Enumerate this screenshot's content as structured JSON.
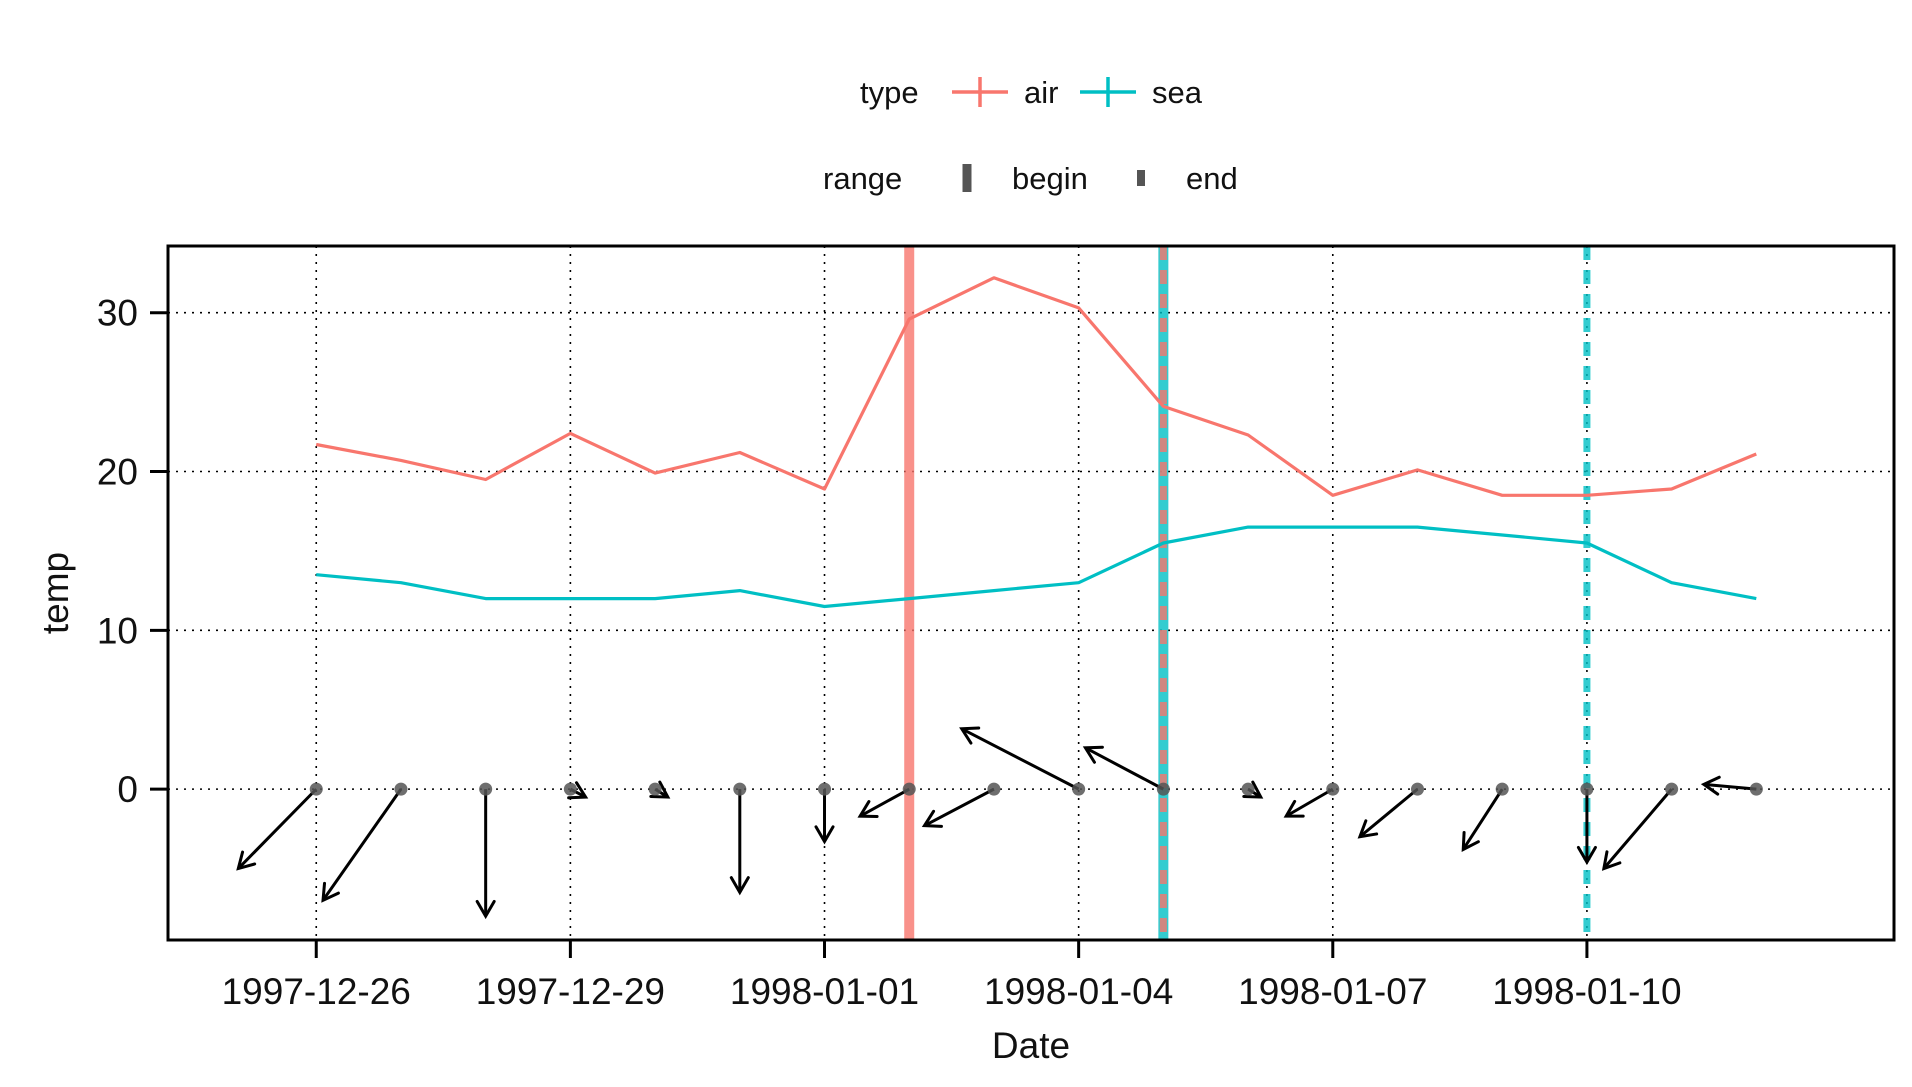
{
  "chart_data": {
    "type": "line",
    "xlabel": "Date",
    "ylabel": "temp",
    "x": [
      "1997-12-26",
      "1997-12-27",
      "1997-12-28",
      "1997-12-29",
      "1997-12-30",
      "1997-12-31",
      "1998-01-01",
      "1998-01-02",
      "1998-01-03",
      "1998-01-04",
      "1998-01-05",
      "1998-01-06",
      "1998-01-07",
      "1998-01-08",
      "1998-01-09",
      "1998-01-10",
      "1998-01-11",
      "1998-01-12"
    ],
    "series": [
      {
        "name": "air",
        "color": "#F8766D",
        "values": [
          21.7,
          20.7,
          19.5,
          22.4,
          19.9,
          21.2,
          18.9,
          29.6,
          32.2,
          30.3,
          24.1,
          22.3,
          18.5,
          20.1,
          18.5,
          18.5,
          18.9,
          21.1
        ]
      },
      {
        "name": "sea",
        "color": "#00BFC4",
        "values": [
          13.5,
          13.0,
          12.0,
          12.0,
          12.0,
          12.5,
          11.5,
          12.0,
          12.5,
          13.0,
          15.5,
          16.5,
          16.5,
          16.5,
          16.0,
          15.5,
          13.0,
          12.0
        ]
      }
    ],
    "arrows": {
      "baseline": 0,
      "points": [
        {
          "from": "1997-12-26",
          "dx_days": -0.92,
          "dy": -5.0
        },
        {
          "from": "1997-12-27",
          "dx_days": -0.92,
          "dy": -7.0
        },
        {
          "from": "1997-12-28",
          "dx_days": 0.0,
          "dy": -8.0
        },
        {
          "from": "1997-12-29",
          "dx_days": 0.18,
          "dy": -0.5
        },
        {
          "from": "1997-12-30",
          "dx_days": 0.15,
          "dy": -0.5
        },
        {
          "from": "1997-12-31",
          "dx_days": 0.0,
          "dy": -6.5
        },
        {
          "from": "1998-01-01",
          "dx_days": 0.0,
          "dy": -3.3
        },
        {
          "from": "1998-01-02",
          "dx_days": -0.58,
          "dy": -1.7
        },
        {
          "from": "1998-01-03",
          "dx_days": -0.82,
          "dy": -2.3
        },
        {
          "from": "1998-01-04",
          "dx_days": -1.38,
          "dy": 3.8
        },
        {
          "from": "1998-01-05",
          "dx_days": -0.92,
          "dy": 2.6
        },
        {
          "from": "1998-01-06",
          "dx_days": 0.15,
          "dy": -0.5
        },
        {
          "from": "1998-01-07",
          "dx_days": -0.55,
          "dy": -1.7
        },
        {
          "from": "1998-01-08",
          "dx_days": -0.68,
          "dy": -3.0
        },
        {
          "from": "1998-01-09",
          "dx_days": -0.46,
          "dy": -3.8
        },
        {
          "from": "1998-01-10",
          "dx_days": 0.0,
          "dy": -4.6
        },
        {
          "from": "1998-01-11",
          "dx_days": -0.8,
          "dy": -5.0
        },
        {
          "from": "1998-01-12",
          "dx_days": -0.62,
          "dy": 0.3
        }
      ]
    },
    "ranges": [
      {
        "type": "air",
        "range": "begin",
        "date": "1998-01-02",
        "color": "#F8766D"
      },
      {
        "type": "sea",
        "range": "begin",
        "date": "1998-01-05",
        "color": "#00BFC4"
      },
      {
        "type": "air",
        "range": "end",
        "date": "1998-01-05",
        "color": "#F8766D"
      },
      {
        "type": "sea",
        "range": "end",
        "date": "1998-01-10",
        "color": "#00BFC4"
      }
    ],
    "xticks": [
      "1997-12-26",
      "1997-12-29",
      "1998-01-01",
      "1998-01-04",
      "1998-01-07",
      "1998-01-10"
    ],
    "yticks": [
      0,
      10,
      20,
      30
    ],
    "xlim": [
      "1997-12-24T06:00",
      "1998-01-13T15:00"
    ],
    "ylim": [
      -9.5,
      34.2
    ],
    "grid": true,
    "legend": {
      "placement": "top",
      "groups": [
        {
          "title": "type",
          "items": [
            "air",
            "sea"
          ]
        },
        {
          "title": "range",
          "items": [
            "begin",
            "end"
          ]
        }
      ]
    }
  }
}
